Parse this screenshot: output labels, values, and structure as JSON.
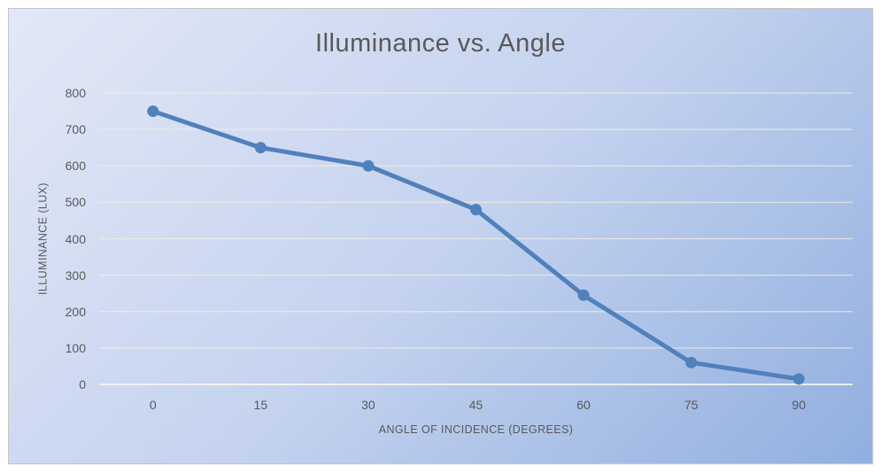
{
  "chart_data": {
    "type": "line",
    "title": "Illuminance vs. Angle",
    "xlabel": "ANGLE OF INCIDENCE (DEGREES)",
    "ylabel": "ILLUMINANCE (LUX)",
    "categories": [
      "0",
      "15",
      "30",
      "45",
      "60",
      "75",
      "90"
    ],
    "series": [
      {
        "name": "illuminance_lux",
        "values": [
          750,
          650,
          600,
          480,
          245,
          60,
          15
        ]
      }
    ],
    "x_values_degrees": [
      0,
      15,
      30,
      45,
      60,
      75,
      90
    ],
    "ylim": [
      0,
      800
    ],
    "yticks": [
      0,
      100,
      200,
      300,
      400,
      500,
      600,
      700,
      800
    ],
    "grid": true,
    "legend": false,
    "marker": "circle"
  },
  "style": {
    "line_color": "#4F81BD",
    "marker_color": "#4F81BD",
    "gridline_color": "#F2EFE2",
    "zero_line_color": "#FAF8EF",
    "text_color": "#595959",
    "background_gradient_start": "#E2E8F6",
    "background_gradient_mid": "#C5D3EF",
    "background_gradient_end": "#91AFDF",
    "frame_border_color": "#C4C4C4",
    "outer_background": "#FFFFFF"
  }
}
